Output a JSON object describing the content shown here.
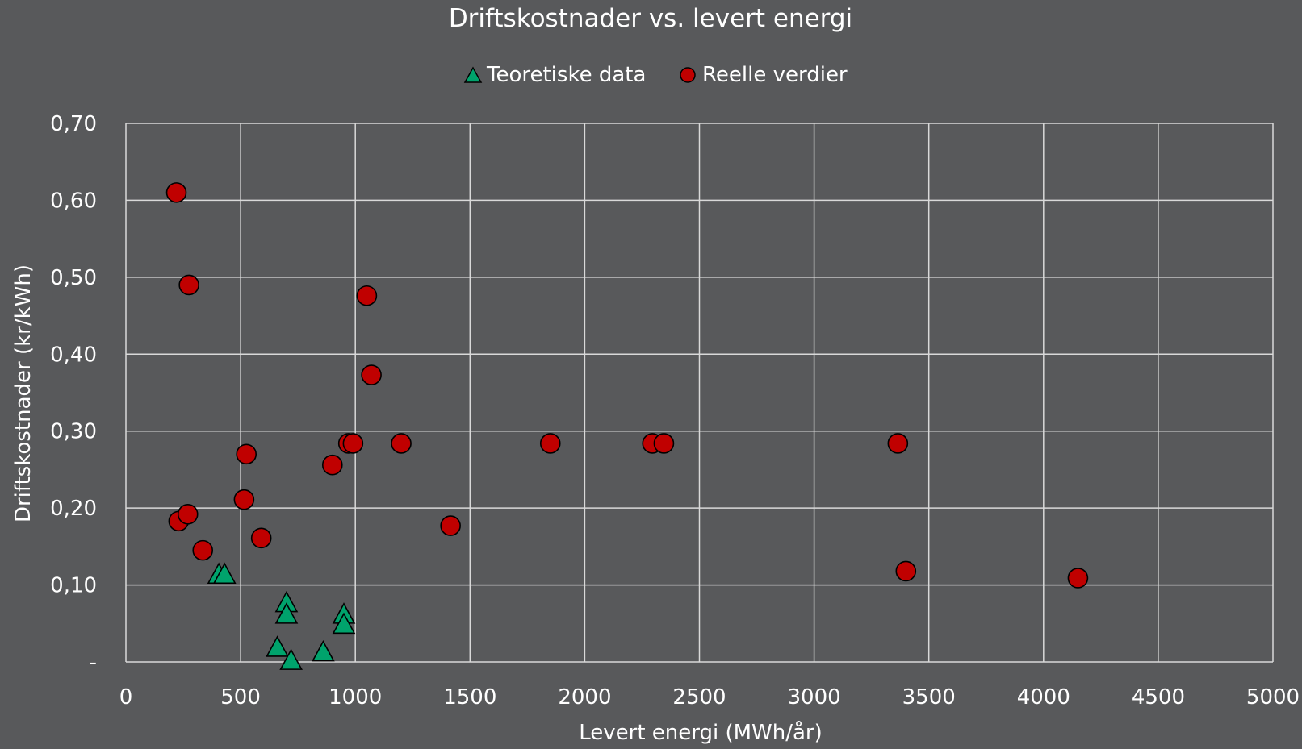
{
  "chart_data": {
    "type": "scatter",
    "title": "Driftskostnader vs. levert energi",
    "xlabel": "Levert energi (MWh/år)",
    "ylabel": "Driftskostnader (kr/kWh)",
    "xlim": [
      0,
      5000
    ],
    "ylim": [
      0,
      0.7
    ],
    "x_ticks": [
      0,
      500,
      1000,
      1500,
      2000,
      2500,
      3000,
      3500,
      4000,
      4500,
      5000
    ],
    "x_tick_labels": [
      "0",
      "500",
      "1000",
      "1500",
      "2000",
      "2500",
      "3000",
      "3500",
      "4000",
      "4500",
      "5000"
    ],
    "y_ticks": [
      0,
      0.1,
      0.2,
      0.3,
      0.4,
      0.5,
      0.6,
      0.7
    ],
    "y_tick_labels": [
      "-",
      "0,10",
      "0,20",
      "0,30",
      "0,40",
      "0,50",
      "0,60",
      "0,70"
    ],
    "grid": true,
    "legend_position": "top-center",
    "colors": {
      "background": "#58595b",
      "grid": "#d9d9d9",
      "text": "#ffffff",
      "teoretiske": "#00a36c",
      "reelle": "#c00000",
      "marker_edge": "#000000"
    },
    "series": [
      {
        "name": "Teoretiske data",
        "marker": "triangle",
        "points": [
          [
            405,
            0.112
          ],
          [
            430,
            0.112
          ],
          [
            700,
            0.075
          ],
          [
            700,
            0.06
          ],
          [
            660,
            0.017
          ],
          [
            720,
            0.0
          ],
          [
            860,
            0.011
          ],
          [
            950,
            0.06
          ],
          [
            950,
            0.047
          ]
        ]
      },
      {
        "name": "Reelle verdier",
        "marker": "circle",
        "points": [
          [
            220,
            0.61
          ],
          [
            275,
            0.49
          ],
          [
            230,
            0.183
          ],
          [
            270,
            0.192
          ],
          [
            335,
            0.145
          ],
          [
            525,
            0.27
          ],
          [
            515,
            0.211
          ],
          [
            590,
            0.161
          ],
          [
            900,
            0.256
          ],
          [
            970,
            0.284
          ],
          [
            990,
            0.284
          ],
          [
            1050,
            0.476
          ],
          [
            1070,
            0.373
          ],
          [
            1200,
            0.284
          ],
          [
            1415,
            0.177
          ],
          [
            1850,
            0.284
          ],
          [
            2295,
            0.284
          ],
          [
            2345,
            0.284
          ],
          [
            3365,
            0.284
          ],
          [
            3400,
            0.118
          ],
          [
            4150,
            0.109
          ]
        ]
      }
    ]
  }
}
